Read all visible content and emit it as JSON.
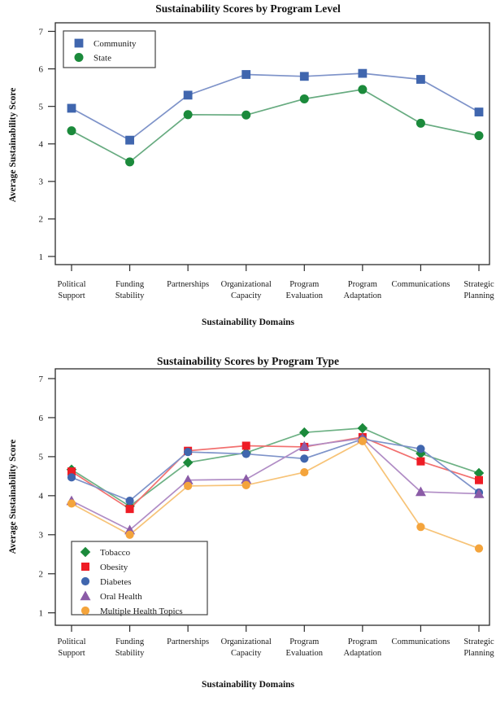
{
  "chart_data": [
    {
      "type": "line",
      "title": "Sustainability Scores by Program Level",
      "xlabel": "Sustainability Domains",
      "ylabel": "Average Sustainability Score",
      "ylim": [
        1,
        7
      ],
      "yticks": [
        1,
        2,
        3,
        4,
        5,
        6,
        7
      ],
      "grid": false,
      "legend_position": "top-left",
      "categories": [
        "Political\nSupport",
        "Funding\nStability",
        "Partnerships",
        "Organizational\nCapacity",
        "Program\nEvaluation",
        "Program\nAdaptation",
        "Communications",
        "Strategic\nPlanning"
      ],
      "series": [
        {
          "name": "Community",
          "marker": "square",
          "color": "#4066ae",
          "line_color": "#7e93c9",
          "values": [
            4.95,
            4.1,
            5.3,
            5.85,
            5.8,
            5.88,
            5.72,
            4.85
          ]
        },
        {
          "name": "State",
          "marker": "circle",
          "color": "#1b8a3b",
          "line_color": "#67ab80",
          "values": [
            4.35,
            3.52,
            4.78,
            4.77,
            5.2,
            5.45,
            4.55,
            4.22
          ]
        }
      ]
    },
    {
      "type": "line",
      "title": "Sustainability Scores by Program Type",
      "xlabel": "Sustainability Domains",
      "ylabel": "Average Sustainability Score",
      "ylim": [
        1,
        7
      ],
      "yticks": [
        1,
        2,
        3,
        4,
        5,
        6,
        7
      ],
      "grid": false,
      "legend_position": "bottom-left",
      "categories": [
        "Political\nSupport",
        "Funding\nStability",
        "Partnerships",
        "Organizational\nCapacity",
        "Program\nEvaluation",
        "Program\nAdaptation",
        "Communications",
        "Strategic\nPlanning"
      ],
      "series": [
        {
          "name": "Tobacco",
          "marker": "diamond",
          "color": "#1b8a3b",
          "line_color": "#6db184",
          "values": [
            4.67,
            3.73,
            4.85,
            5.1,
            5.62,
            5.73,
            5.08,
            4.58
          ]
        },
        {
          "name": "Obesity",
          "marker": "square",
          "color": "#ee1c25",
          "line_color": "#f2706f",
          "values": [
            4.62,
            3.66,
            5.15,
            5.28,
            5.25,
            5.5,
            4.88,
            4.4
          ]
        },
        {
          "name": "Diabetes",
          "marker": "circle",
          "color": "#4066ae",
          "line_color": "#7e93c9",
          "values": [
            4.47,
            3.87,
            5.12,
            5.07,
            4.95,
            5.45,
            5.2,
            4.08
          ]
        },
        {
          "name": "Oral Health",
          "marker": "triangle",
          "color": "#8b5ca7",
          "line_color": "#b08cc5",
          "values": [
            3.87,
            3.12,
            4.4,
            4.42,
            5.27,
            5.47,
            4.1,
            4.05
          ]
        },
        {
          "name": "Multiple Health Topics",
          "marker": "circle",
          "color": "#f4a43c",
          "line_color": "#f7c377",
          "values": [
            3.8,
            3.0,
            4.25,
            4.27,
            4.6,
            5.4,
            3.2,
            2.65
          ]
        }
      ]
    }
  ],
  "style": {
    "axis_color": "#2b2b2b",
    "legend_border_color": "#444444",
    "background": "#ffffff"
  }
}
